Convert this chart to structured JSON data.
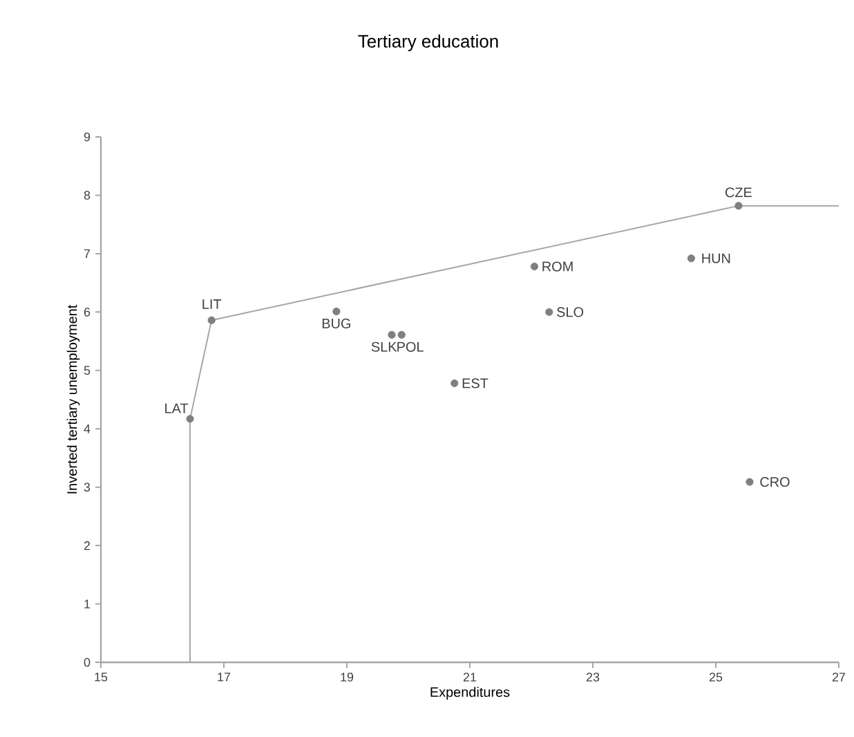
{
  "chart_data": {
    "type": "scatter",
    "title": "Tertiary education",
    "xlabel": "Expenditures",
    "ylabel": "Inverted tertiary unemployment",
    "xlim": [
      15,
      27
    ],
    "xticks": [
      15,
      17,
      19,
      21,
      23,
      25,
      27
    ],
    "ylim": [
      0,
      9
    ],
    "yticks": [
      0,
      1,
      2,
      3,
      4,
      5,
      6,
      7,
      8,
      9
    ],
    "grid": false,
    "marker": "circle",
    "series": [
      {
        "type": "line",
        "color": "#a6a6a6",
        "marker": "none",
        "line_style": "solid",
        "x": [
          16.45,
          16.45,
          16.8,
          25.37,
          27
        ],
        "values": [
          0,
          4.17,
          5.86,
          7.82,
          7.82
        ]
      },
      {
        "color": "#7f7f7f",
        "x": [
          16.45,
          16.8,
          18.83,
          19.73,
          19.89,
          20.75,
          22.05,
          22.29,
          24.6,
          25.37,
          25.55
        ],
        "values": [
          4.17,
          5.86,
          6.01,
          5.61,
          5.61,
          4.78,
          6.78,
          6.0,
          6.92,
          7.82,
          3.09
        ]
      }
    ],
    "annotations": [
      {
        "text": "LAT",
        "x": 16.45,
        "y": 4.17
      },
      {
        "text": "LIT",
        "x": 16.8,
        "y": 5.86
      },
      {
        "text": "BUG",
        "x": 18.83,
        "y": 6.01
      },
      {
        "text": "SLK",
        "x": 19.73,
        "y": 5.61
      },
      {
        "text": "POL",
        "x": 19.89,
        "y": 5.61
      },
      {
        "text": "EST",
        "x": 20.75,
        "y": 4.78
      },
      {
        "text": "ROM",
        "x": 22.05,
        "y": 6.78
      },
      {
        "text": "SLO",
        "x": 22.29,
        "y": 6.0
      },
      {
        "text": "HUN",
        "x": 24.6,
        "y": 6.92
      },
      {
        "text": "CZE",
        "x": 25.37,
        "y": 7.82
      },
      {
        "text": "CRO",
        "x": 25.55,
        "y": 3.09
      }
    ]
  }
}
